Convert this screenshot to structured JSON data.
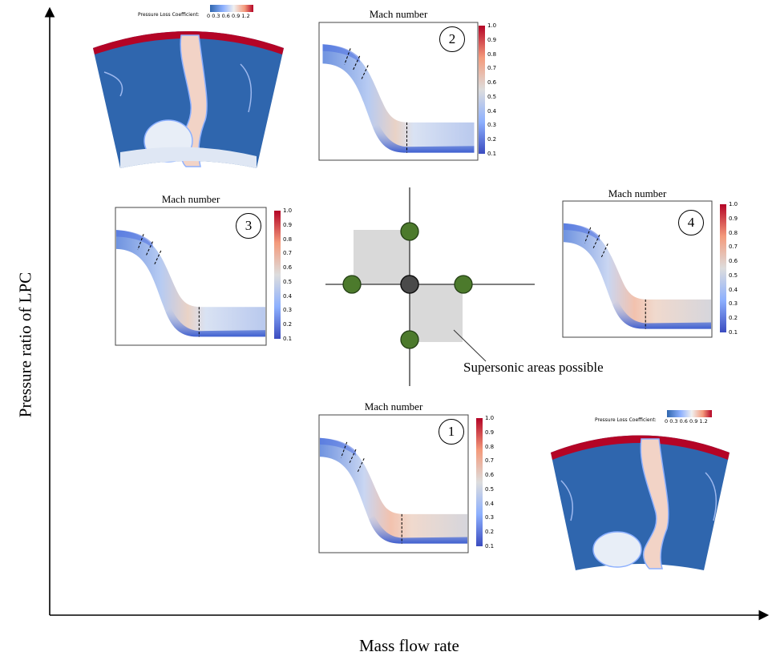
{
  "axes": {
    "x_label": "Mass flow rate",
    "y_label": "Pressure ratio of LPC"
  },
  "center_annotation": "Supersonic areas possible",
  "mach_panels": [
    {
      "id": "2",
      "title": "Mach number",
      "badge": "2"
    },
    {
      "id": "3",
      "title": "Mach number",
      "badge": "3"
    },
    {
      "id": "4",
      "title": "Mach number",
      "badge": "4"
    },
    {
      "id": "1",
      "title": "Mach number",
      "badge": "1"
    }
  ],
  "mach_colorbar_ticks": [
    "1.0",
    "0.9",
    "0.8",
    "0.7",
    "0.6",
    "0.5",
    "0.4",
    "0.3",
    "0.2",
    "0.1"
  ],
  "pressure_loss_legend": {
    "title": "Pressure Loss Coefficient:",
    "ticks": "0  0.3 0.6 0.9 1.2"
  },
  "colors": {
    "low": "#3b4cc0",
    "mid": "#dddddd",
    "high": "#b40426",
    "field_blue": "#2f66ae",
    "operating_point": "#4c7a2c",
    "design_point": "#4a4a4a",
    "shaded_region": "#d9d9d9"
  }
}
